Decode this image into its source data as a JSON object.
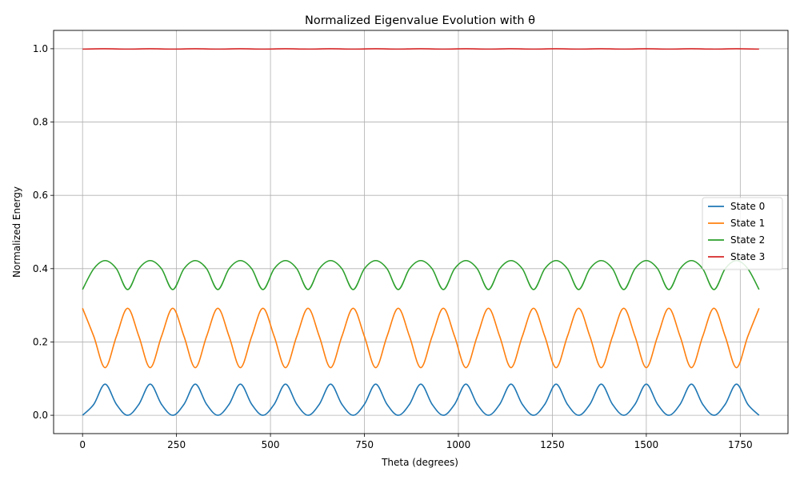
{
  "chart_data": {
    "type": "line",
    "title": "Normalized Eigenvalue Evolution with θ",
    "xlabel": "Theta (degrees)",
    "ylabel": "Normalized Energy",
    "xlim": [
      -77,
      1877
    ],
    "ylim": [
      -0.05,
      1.05
    ],
    "x_ticks": [
      0,
      250,
      500,
      750,
      1000,
      1250,
      1500,
      1750
    ],
    "x_tick_labels": [
      "0",
      "250",
      "500",
      "750",
      "1000",
      "1250",
      "1500",
      "1750"
    ],
    "y_ticks": [
      0.0,
      0.2,
      0.4,
      0.6,
      0.8,
      1.0
    ],
    "y_tick_labels": [
      "0.0",
      "0.2",
      "0.4",
      "0.6",
      "0.8",
      "1.0"
    ],
    "grid": true,
    "legend_position": "center-right",
    "series": [
      {
        "name": "State 0",
        "color": "#1f77b4",
        "x": [
          0,
          30,
          60,
          90,
          120,
          150,
          180,
          210,
          240,
          270,
          300,
          330,
          360,
          390,
          420,
          450,
          480,
          510,
          540,
          570,
          600,
          630,
          660,
          690,
          720,
          750,
          780,
          810,
          840,
          870,
          900,
          930,
          960,
          990,
          1020,
          1050,
          1080,
          1110,
          1140,
          1170,
          1200,
          1230,
          1260,
          1290,
          1320,
          1350,
          1380,
          1410,
          1440,
          1470,
          1500,
          1530,
          1560,
          1590,
          1620,
          1650,
          1680,
          1710,
          1740,
          1770,
          1800
        ],
        "y": [
          0.0,
          0.03,
          0.085,
          0.03,
          0.0,
          0.03,
          0.085,
          0.03,
          0.0,
          0.03,
          0.085,
          0.03,
          0.0,
          0.03,
          0.085,
          0.03,
          0.0,
          0.03,
          0.085,
          0.03,
          0.0,
          0.03,
          0.085,
          0.03,
          0.0,
          0.03,
          0.085,
          0.03,
          0.0,
          0.03,
          0.085,
          0.03,
          0.0,
          0.03,
          0.085,
          0.03,
          0.0,
          0.03,
          0.085,
          0.03,
          0.0,
          0.03,
          0.085,
          0.03,
          0.0,
          0.03,
          0.085,
          0.03,
          0.0,
          0.03,
          0.085,
          0.03,
          0.0,
          0.03,
          0.085,
          0.03,
          0.0,
          0.03,
          0.085,
          0.03,
          0.0
        ]
      },
      {
        "name": "State 1",
        "color": "#ff7f0e",
        "x": [
          0,
          30,
          60,
          90,
          120,
          150,
          180,
          210,
          240,
          270,
          300,
          330,
          360,
          390,
          420,
          450,
          480,
          510,
          540,
          570,
          600,
          630,
          660,
          690,
          720,
          750,
          780,
          810,
          840,
          870,
          900,
          930,
          960,
          990,
          1020,
          1050,
          1080,
          1110,
          1140,
          1170,
          1200,
          1230,
          1260,
          1290,
          1320,
          1350,
          1380,
          1410,
          1440,
          1470,
          1500,
          1530,
          1560,
          1590,
          1620,
          1650,
          1680,
          1710,
          1740,
          1770,
          1800
        ],
        "y": [
          0.292,
          0.215,
          0.13,
          0.215,
          0.292,
          0.215,
          0.13,
          0.215,
          0.292,
          0.215,
          0.13,
          0.215,
          0.292,
          0.215,
          0.13,
          0.215,
          0.292,
          0.215,
          0.13,
          0.215,
          0.292,
          0.215,
          0.13,
          0.215,
          0.292,
          0.215,
          0.13,
          0.215,
          0.292,
          0.215,
          0.13,
          0.215,
          0.292,
          0.215,
          0.13,
          0.215,
          0.292,
          0.215,
          0.13,
          0.215,
          0.292,
          0.215,
          0.13,
          0.215,
          0.292,
          0.215,
          0.13,
          0.215,
          0.292,
          0.215,
          0.13,
          0.215,
          0.292,
          0.215,
          0.13,
          0.215,
          0.292,
          0.215,
          0.13,
          0.215,
          0.292
        ]
      },
      {
        "name": "State 2",
        "color": "#2ca02c",
        "x": [
          0,
          30,
          60,
          90,
          120,
          150,
          180,
          210,
          240,
          270,
          300,
          330,
          360,
          390,
          420,
          450,
          480,
          510,
          540,
          570,
          600,
          630,
          660,
          690,
          720,
          750,
          780,
          810,
          840,
          870,
          900,
          930,
          960,
          990,
          1020,
          1050,
          1080,
          1110,
          1140,
          1170,
          1200,
          1230,
          1260,
          1290,
          1320,
          1350,
          1380,
          1410,
          1440,
          1470,
          1500,
          1530,
          1560,
          1590,
          1620,
          1650,
          1680,
          1710,
          1740,
          1770,
          1800
        ],
        "y": [
          0.343,
          0.4,
          0.422,
          0.4,
          0.343,
          0.4,
          0.422,
          0.4,
          0.343,
          0.4,
          0.422,
          0.4,
          0.343,
          0.4,
          0.422,
          0.4,
          0.343,
          0.4,
          0.422,
          0.4,
          0.343,
          0.4,
          0.422,
          0.4,
          0.343,
          0.4,
          0.422,
          0.4,
          0.343,
          0.4,
          0.422,
          0.4,
          0.343,
          0.4,
          0.422,
          0.4,
          0.343,
          0.4,
          0.422,
          0.4,
          0.343,
          0.4,
          0.422,
          0.4,
          0.343,
          0.4,
          0.422,
          0.4,
          0.343,
          0.4,
          0.422,
          0.4,
          0.343,
          0.4,
          0.422,
          0.4,
          0.343,
          0.4,
          0.422,
          0.4,
          0.343
        ]
      },
      {
        "name": "State 3",
        "color": "#d62728",
        "x": [
          0,
          60,
          120,
          180,
          240,
          300,
          360,
          420,
          480,
          540,
          600,
          660,
          720,
          780,
          840,
          900,
          960,
          1020,
          1080,
          1140,
          1200,
          1260,
          1320,
          1380,
          1440,
          1500,
          1560,
          1620,
          1680,
          1740,
          1800
        ],
        "y": [
          0.999,
          1.0,
          0.999,
          1.0,
          0.999,
          1.0,
          0.999,
          1.0,
          0.999,
          1.0,
          0.999,
          1.0,
          0.999,
          1.0,
          0.999,
          1.0,
          0.999,
          1.0,
          0.999,
          1.0,
          0.999,
          1.0,
          0.999,
          1.0,
          0.999,
          1.0,
          0.999,
          1.0,
          0.999,
          1.0,
          0.999
        ]
      }
    ]
  }
}
